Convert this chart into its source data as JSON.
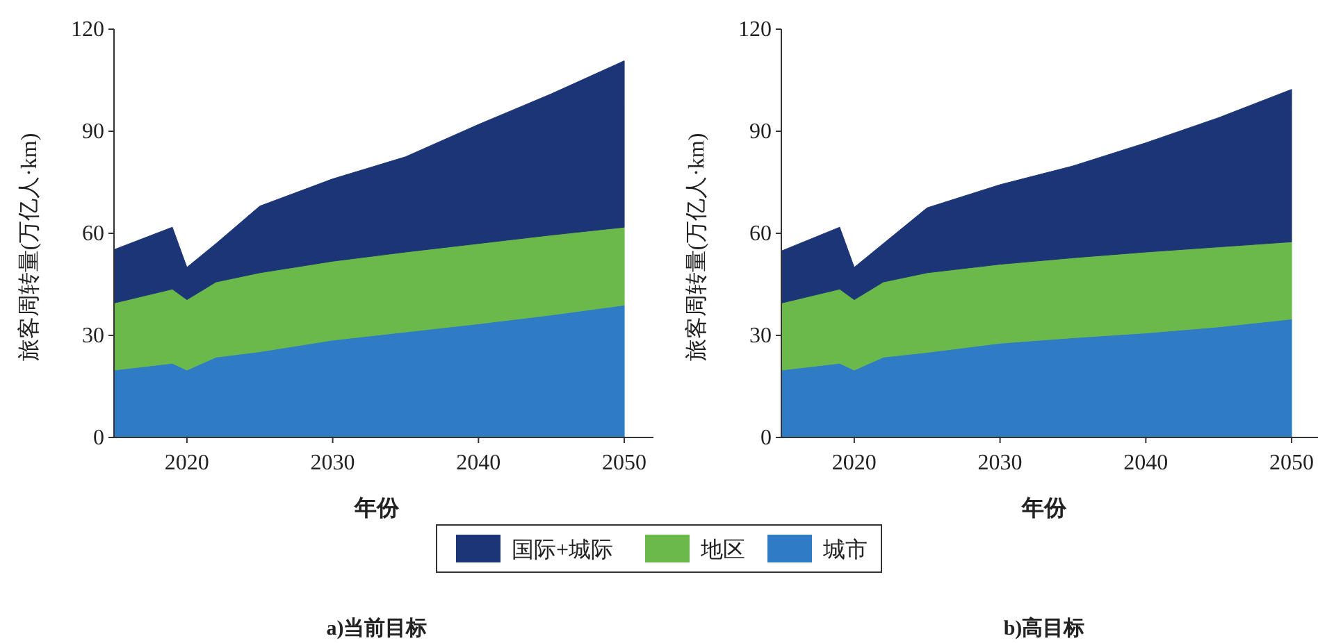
{
  "chart_data": [
    {
      "type": "area",
      "stacked": true,
      "title": "a)当前目标",
      "xlabel": "年份",
      "ylabel": "旅客周转量(万亿人·km)",
      "xlim": [
        2015,
        2052
      ],
      "xticks": [
        2020,
        2030,
        2040,
        2050
      ],
      "ylim": [
        0,
        120
      ],
      "yticks": [
        0,
        30,
        60,
        90,
        120
      ],
      "grid": false,
      "legend": "bottom",
      "x": [
        2015,
        2019,
        2020,
        2022,
        2025,
        2030,
        2035,
        2040,
        2045,
        2050
      ],
      "series": [
        {
          "name": "城市",
          "color": "#2f7cc4",
          "values": [
            19.8,
            21.8,
            19.8,
            23.6,
            25.2,
            28.6,
            31,
            33.4,
            36,
            38.9
          ]
        },
        {
          "name": "地区",
          "color": "#6cb94b",
          "values": [
            19.7,
            21.8,
            20.7,
            22.1,
            23.2,
            23.2,
            23.5,
            23.6,
            23.5,
            22.9
          ]
        },
        {
          "name": "国际+城际",
          "color": "#1c3576",
          "values": [
            15.7,
            18.2,
            9.5,
            11.3,
            19.6,
            24.2,
            28,
            35,
            41.5,
            48.9
          ]
        }
      ]
    },
    {
      "type": "area",
      "stacked": true,
      "title": "b)高目标",
      "xlabel": "年份",
      "ylabel": "旅客周转量(万亿人·km)",
      "xlim": [
        2015,
        2052
      ],
      "xticks": [
        2020,
        2030,
        2040,
        2050
      ],
      "ylim": [
        0,
        120
      ],
      "yticks": [
        0,
        30,
        60,
        90,
        120
      ],
      "grid": false,
      "legend": "bottom",
      "x": [
        2015,
        2019,
        2020,
        2022,
        2025,
        2030,
        2035,
        2040,
        2045,
        2050
      ],
      "series": [
        {
          "name": "城市",
          "color": "#2f7cc4",
          "values": [
            19.8,
            21.8,
            19.8,
            23.6,
            25,
            27.7,
            29.3,
            30.7,
            32.5,
            34.8
          ]
        },
        {
          "name": "地区",
          "color": "#6cb94b",
          "values": [
            19.7,
            21.8,
            20.7,
            22.1,
            23.4,
            23.2,
            23.5,
            23.8,
            23.5,
            22.7
          ]
        },
        {
          "name": "国际+城际",
          "color": "#1c3576",
          "values": [
            15.3,
            18.2,
            9.5,
            11.3,
            19.1,
            23.4,
            27,
            32.1,
            38,
            44.8
          ]
        }
      ]
    }
  ]
}
